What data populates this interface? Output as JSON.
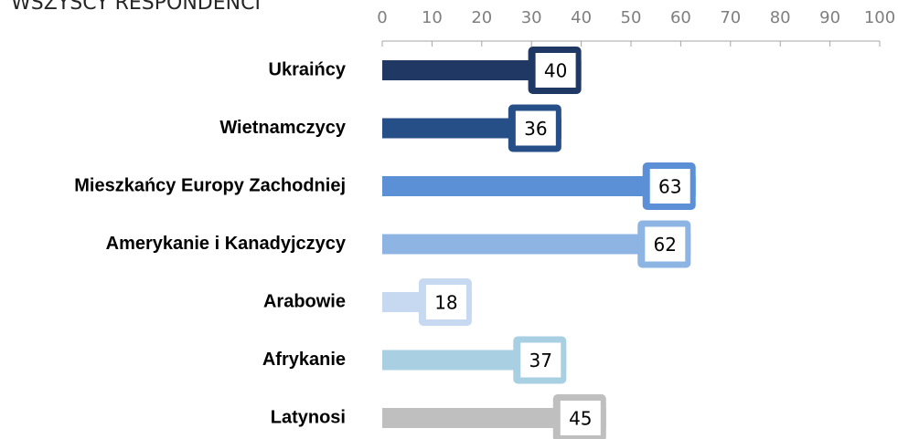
{
  "chart_data": {
    "type": "bar",
    "orientation": "horizontal",
    "title": "WSZYSCY RESPONDENCI",
    "categories": [
      "Ukraińcy",
      "Wietnamczycy",
      "Mieszkańcy Europy Zachodniej",
      "Amerykanie i Kanadyjczycy",
      "Arabowie",
      "Afrykanie",
      "Latynosi"
    ],
    "values": [
      40,
      36,
      63,
      62,
      18,
      37,
      45
    ],
    "colors": [
      "#1f3864",
      "#264e87",
      "#5b8fd6",
      "#8db4e3",
      "#c6d9f1",
      "#a9cfe2",
      "#bfbfbf"
    ],
    "xlim": [
      0,
      100
    ],
    "xticks": [
      0,
      10,
      20,
      30,
      40,
      50,
      60,
      70,
      80,
      90,
      100
    ],
    "grid": false
  }
}
